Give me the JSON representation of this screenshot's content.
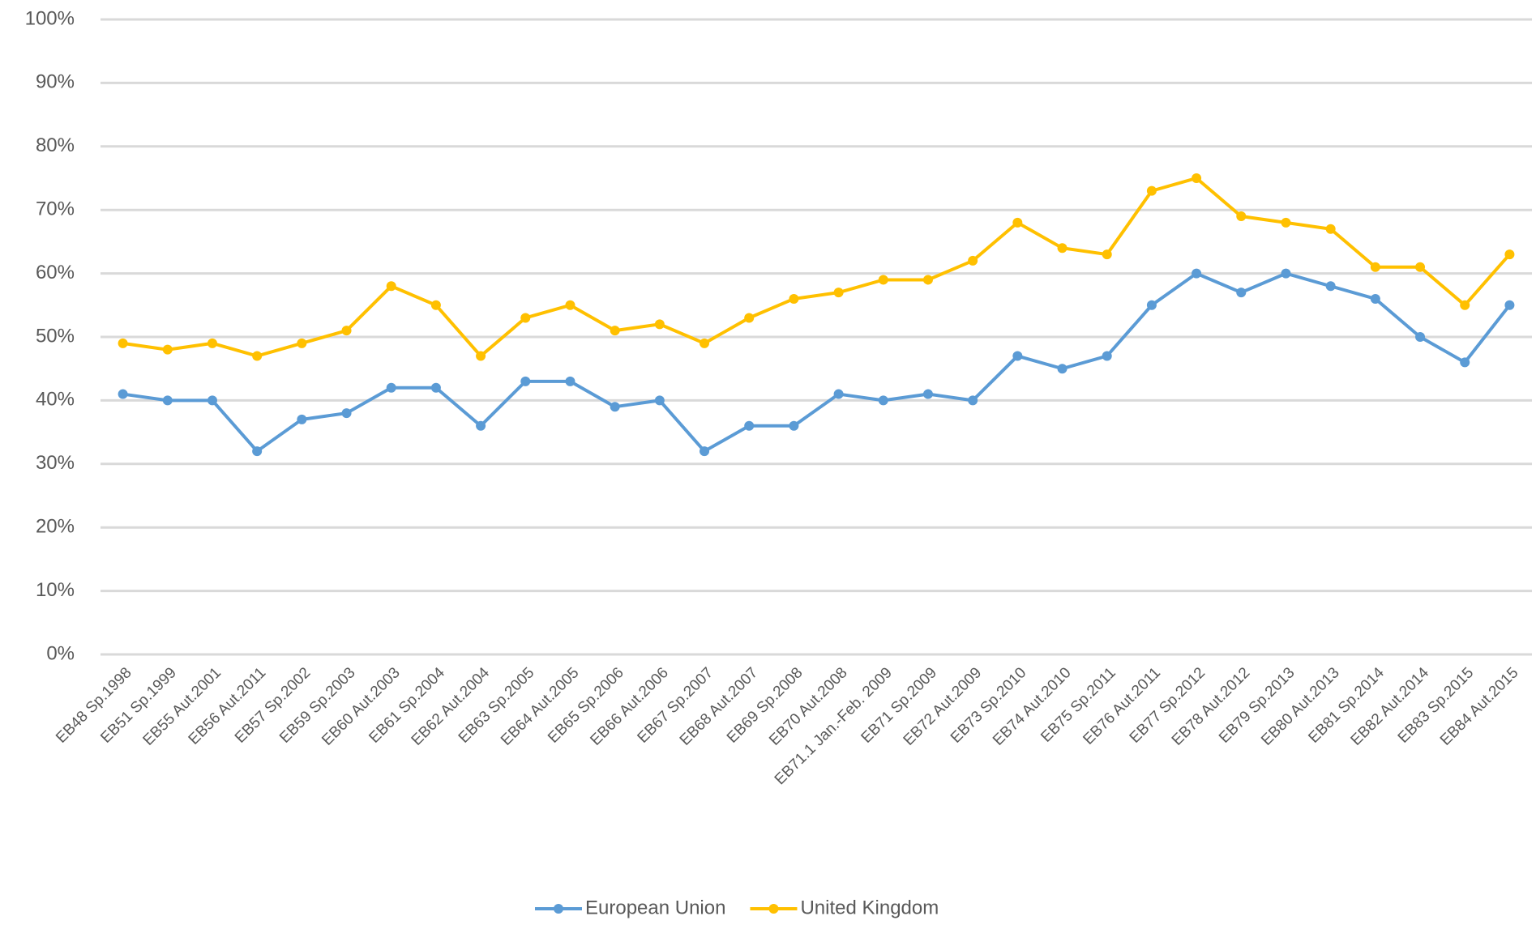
{
  "chart_data": {
    "type": "line",
    "categories": [
      "EB48 Sp.1998",
      "EB51 Sp.1999",
      "EB55 Aut.2001",
      "EB56 Aut.2011",
      "EB57 Sp.2002",
      "EB59 Sp.2003",
      "EB60 Aut.2003",
      "EB61 Sp.2004",
      "EB62 Aut.2004",
      "EB63 Sp.2005",
      "EB64 Aut.2005",
      "EB65 Sp.2006",
      "EB66 Aut.2006",
      "EB67 Sp.2007",
      "EB68 Aut.2007",
      "EB69 Sp.2008",
      "EB70 Aut.2008",
      "EB71.1 Jan.-Feb. 2009",
      "EB71 Sp.2009",
      "EB72 Aut.2009",
      "EB73 Sp.2010",
      "EB74 Aut.2010",
      "EB75 Sp.2011",
      "EB76 Aut.2011",
      "EB77 Sp.2012",
      "EB78 Aut.2012",
      "EB79 Sp.2013",
      "EB80 Aut.2013",
      "EB81 Sp.2014",
      "EB82 Aut.2014",
      "EB83 Sp.2015",
      "EB84 Aut.2015"
    ],
    "series": [
      {
        "name": "European Union",
        "color": "#5b9bd5",
        "values": [
          41,
          40,
          40,
          32,
          37,
          38,
          42,
          42,
          36,
          43,
          43,
          39,
          40,
          32,
          36,
          36,
          41,
          40,
          41,
          40,
          47,
          45,
          47,
          55,
          60,
          57,
          60,
          58,
          56,
          50,
          46,
          55
        ]
      },
      {
        "name": "United Kingdom",
        "color": "#ffc000",
        "values": [
          49,
          48,
          49,
          47,
          49,
          51,
          58,
          55,
          47,
          53,
          55,
          51,
          52,
          49,
          53,
          56,
          57,
          59,
          59,
          62,
          68,
          64,
          63,
          73,
          75,
          69,
          68,
          67,
          61,
          61,
          55,
          63
        ]
      }
    ],
    "ylim": [
      0,
      100
    ],
    "yticks": [
      {
        "value": 0,
        "label": "0%"
      },
      {
        "value": 10,
        "label": "10%"
      },
      {
        "value": 20,
        "label": "20%"
      },
      {
        "value": 30,
        "label": "30%"
      },
      {
        "value": 40,
        "label": "40%"
      },
      {
        "value": 50,
        "label": "50%"
      },
      {
        "value": 60,
        "label": "60%"
      },
      {
        "value": 70,
        "label": "70%"
      },
      {
        "value": 80,
        "label": "80%"
      },
      {
        "value": 90,
        "label": "90%"
      },
      {
        "value": 100,
        "label": "100%"
      }
    ],
    "grid": true,
    "legend": "bottom"
  }
}
